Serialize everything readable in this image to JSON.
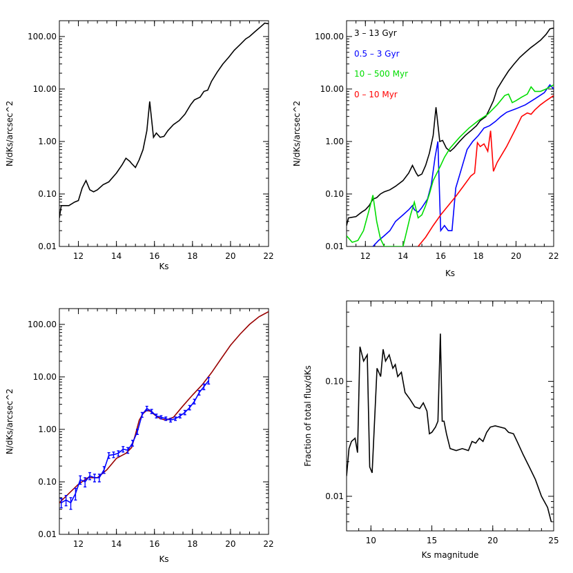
{
  "chart_data": [
    {
      "type": "line",
      "xlabel": "Ks",
      "ylabel": "N/dKs/arcsec^2",
      "xlim": [
        11,
        22
      ],
      "ylim": [
        0.01,
        200
      ],
      "yscale": "log",
      "xticks": [
        12,
        14,
        16,
        18,
        20,
        22
      ],
      "yticks": [
        0.01,
        0.1,
        1,
        10,
        100
      ],
      "yticklabels": [
        "0.01",
        "0.10",
        "1.00",
        "10.00",
        "100.00"
      ],
      "series": [
        {
          "color": "#000000",
          "x": [
            11.0,
            11.1,
            11.5,
            11.8,
            12.0,
            12.2,
            12.4,
            12.6,
            12.8,
            13.0,
            13.3,
            13.6,
            14.0,
            14.3,
            14.5,
            14.7,
            14.8,
            15.0,
            15.2,
            15.4,
            15.6,
            15.75,
            15.95,
            16.1,
            16.3,
            16.5,
            16.7,
            17.0,
            17.3,
            17.6,
            17.9,
            18.1,
            18.4,
            18.6,
            18.8,
            19.0,
            19.3,
            19.6,
            19.9,
            20.2,
            20.5,
            20.8,
            21.0,
            21.3,
            21.6,
            21.8,
            22.0
          ],
          "y": [
            0.035,
            0.06,
            0.06,
            0.07,
            0.075,
            0.13,
            0.18,
            0.12,
            0.11,
            0.12,
            0.15,
            0.17,
            0.25,
            0.36,
            0.48,
            0.42,
            0.38,
            0.32,
            0.45,
            0.7,
            1.6,
            5.8,
            1.2,
            1.45,
            1.2,
            1.25,
            1.6,
            2.1,
            2.5,
            3.3,
            5.0,
            6.2,
            7.0,
            9.0,
            9.5,
            14,
            21,
            30,
            40,
            55,
            70,
            90,
            100,
            125,
            155,
            180,
            175
          ]
        }
      ]
    },
    {
      "type": "line",
      "xlabel": "Ks",
      "ylabel": "N/dKs/arcsec^2",
      "xlim": [
        11,
        22
      ],
      "ylim": [
        0.01,
        200
      ],
      "yscale": "log",
      "xticks": [
        12,
        14,
        16,
        18,
        20,
        22
      ],
      "yticks": [
        0.01,
        0.1,
        1,
        10,
        100
      ],
      "yticklabels": [
        "0.01",
        "0.10",
        "1.00",
        "10.00",
        "100.00"
      ],
      "legend_position": "top-left",
      "series": [
        {
          "name": "3 – 13 Gyr",
          "color": "#000000",
          "x": [
            11.0,
            11.1,
            11.5,
            11.8,
            12.0,
            12.2,
            12.4,
            12.6,
            12.8,
            13.0,
            13.3,
            13.6,
            14.0,
            14.3,
            14.5,
            14.7,
            14.8,
            15.0,
            15.2,
            15.4,
            15.6,
            15.75,
            15.95,
            16.1,
            16.3,
            16.5,
            16.7,
            17.0,
            17.3,
            17.6,
            17.9,
            18.1,
            18.4,
            18.6,
            18.8,
            19.0,
            19.3,
            19.6,
            19.9,
            20.2,
            20.5,
            20.8,
            21.0,
            21.3,
            21.6,
            21.8,
            22.0
          ],
          "y": [
            0.025,
            0.035,
            0.037,
            0.045,
            0.05,
            0.06,
            0.08,
            0.085,
            0.1,
            0.11,
            0.12,
            0.14,
            0.18,
            0.25,
            0.35,
            0.25,
            0.22,
            0.24,
            0.35,
            0.6,
            1.3,
            4.5,
            1.0,
            1.05,
            0.75,
            0.65,
            0.75,
            1.0,
            1.3,
            1.6,
            2.0,
            2.5,
            3.0,
            4.2,
            6.0,
            10,
            15,
            22,
            30,
            40,
            50,
            62,
            70,
            85,
            110,
            140,
            145
          ]
        },
        {
          "name": "0.5 – 3 Gyr",
          "color": "#0000ff",
          "x": [
            12.4,
            12.7,
            13.0,
            13.3,
            13.6,
            14.0,
            14.3,
            14.5,
            14.6,
            14.8,
            15.0,
            15.3,
            15.5,
            15.7,
            15.85,
            16.0,
            16.2,
            16.4,
            16.6,
            16.8,
            17.1,
            17.4,
            17.7,
            18.0,
            18.3,
            18.6,
            18.9,
            19.2,
            19.5,
            20.0,
            20.5,
            21.0,
            21.5,
            21.8,
            22.0
          ],
          "y": [
            0.01,
            0.013,
            0.016,
            0.02,
            0.03,
            0.04,
            0.05,
            0.06,
            0.05,
            0.045,
            0.055,
            0.08,
            0.15,
            0.5,
            1.0,
            0.02,
            0.025,
            0.02,
            0.02,
            0.13,
            0.3,
            0.7,
            1.0,
            1.3,
            1.8,
            2.0,
            2.4,
            3.0,
            3.6,
            4.2,
            5.0,
            6.5,
            8.5,
            12,
            10
          ]
        },
        {
          "name": "10 – 500 Myr",
          "color": "#00dd00",
          "x": [
            11.0,
            11.3,
            11.6,
            11.9,
            12.2,
            12.4,
            12.6,
            12.8,
            13.0,
            13.5,
            14.0,
            14.4,
            14.6,
            14.8,
            15.0,
            15.2,
            15.4,
            15.6,
            15.8,
            16.0,
            16.2,
            16.5,
            17.0,
            17.5,
            18.0,
            18.5,
            19.0,
            19.4,
            19.6,
            19.8,
            20.0,
            20.3,
            20.6,
            20.8,
            21.0,
            21.3,
            21.6,
            21.8,
            22.0
          ],
          "y": [
            0.016,
            0.012,
            0.013,
            0.02,
            0.05,
            0.095,
            0.03,
            0.014,
            0.01,
            0.01,
            0.01,
            0.04,
            0.07,
            0.035,
            0.04,
            0.06,
            0.1,
            0.18,
            0.25,
            0.35,
            0.5,
            0.75,
            1.2,
            1.8,
            2.5,
            3.3,
            5.0,
            7.5,
            8.0,
            5.5,
            6.0,
            7.0,
            8.0,
            11,
            9.0,
            9.0,
            10,
            11,
            12
          ]
        },
        {
          "name": "0 – 10 Myr",
          "color": "#ff0000",
          "x": [
            14.8,
            15.2,
            15.6,
            16.0,
            16.4,
            16.8,
            17.2,
            17.6,
            17.8,
            17.95,
            18.1,
            18.3,
            18.5,
            18.65,
            18.8,
            19.0,
            19.5,
            20.0,
            20.3,
            20.6,
            20.8,
            21.0,
            21.3,
            21.6,
            22.0
          ],
          "y": [
            0.01,
            0.015,
            0.025,
            0.04,
            0.06,
            0.09,
            0.14,
            0.22,
            0.25,
            0.95,
            0.8,
            0.9,
            0.65,
            1.6,
            0.27,
            0.4,
            0.8,
            1.8,
            3.0,
            3.5,
            3.3,
            4.0,
            5.0,
            6.0,
            7.5
          ]
        }
      ]
    },
    {
      "type": "line",
      "xlabel": "Ks",
      "ylabel": "N/dKs/arcsec^2",
      "xlim": [
        11,
        22
      ],
      "ylim": [
        0.01,
        200
      ],
      "yscale": "log",
      "xticks": [
        12,
        14,
        16,
        18,
        20,
        22
      ],
      "yticks": [
        0.01,
        0.1,
        1,
        10,
        100
      ],
      "yticklabels": [
        "0.01",
        "0.10",
        "1.00",
        "10.00",
        "100.00"
      ],
      "series": [
        {
          "color": "#990000",
          "x": [
            11.0,
            11.5,
            12.0,
            12.5,
            13.0,
            13.5,
            14.0,
            14.5,
            14.8,
            15.0,
            15.2,
            15.4,
            15.6,
            15.8,
            16.0,
            16.3,
            16.6,
            17.0,
            17.5,
            18.0,
            18.5,
            19.0,
            19.5,
            20.0,
            20.5,
            21.0,
            21.5,
            22.0
          ],
          "y": [
            0.04,
            0.06,
            0.09,
            0.12,
            0.12,
            0.17,
            0.28,
            0.35,
            0.45,
            0.8,
            1.5,
            2.0,
            2.3,
            2.2,
            1.9,
            1.6,
            1.5,
            1.7,
            2.8,
            4.5,
            7.0,
            12,
            22,
            40,
            65,
            100,
            140,
            175
          ]
        },
        {
          "color": "#0000ff",
          "x": [
            11.1,
            11.35,
            11.6,
            11.85,
            12.1,
            12.35,
            12.6,
            12.85,
            13.1,
            13.35,
            13.6,
            13.85,
            14.1,
            14.35,
            14.6,
            14.85,
            15.1,
            15.35,
            15.6,
            15.85,
            16.1,
            16.35,
            16.6,
            16.85,
            17.1,
            17.35,
            17.6,
            17.85,
            18.1,
            18.35,
            18.6,
            18.85
          ],
          "y": [
            0.04,
            0.045,
            0.04,
            0.06,
            0.11,
            0.1,
            0.13,
            0.12,
            0.12,
            0.17,
            0.32,
            0.33,
            0.35,
            0.42,
            0.4,
            0.55,
            0.9,
            1.9,
            2.5,
            2.2,
            1.8,
            1.7,
            1.6,
            1.5,
            1.6,
            1.8,
            2.1,
            2.6,
            3.4,
            5.0,
            6.5,
            8.5
          ],
          "err": [
            0.008,
            0.01,
            0.01,
            0.015,
            0.02,
            0.02,
            0.02,
            0.02,
            0.02,
            0.025,
            0.04,
            0.04,
            0.04,
            0.05,
            0.05,
            0.07,
            0.1,
            0.2,
            0.25,
            0.2,
            0.15,
            0.12,
            0.12,
            0.12,
            0.12,
            0.15,
            0.2,
            0.25,
            0.35,
            0.5,
            0.8,
            1.2
          ]
        }
      ]
    },
    {
      "type": "line",
      "xlabel": "Ks magnitude",
      "ylabel": "Fraction of total flux/dKs",
      "xlim": [
        8,
        25
      ],
      "ylim": [
        0.005,
        0.5
      ],
      "yscale": "log",
      "xticks": [
        10,
        15,
        20,
        25
      ],
      "yticks": [
        0.01,
        0.1
      ],
      "yticklabels": [
        "0.01",
        "0.10"
      ],
      "series": [
        {
          "color": "#000000",
          "x": [
            8.0,
            8.2,
            8.4,
            8.7,
            8.9,
            9.1,
            9.4,
            9.7,
            9.9,
            10.1,
            10.5,
            10.8,
            11.0,
            11.2,
            11.5,
            11.8,
            12.0,
            12.2,
            12.5,
            12.8,
            13.2,
            13.6,
            14.0,
            14.3,
            14.6,
            14.8,
            15.0,
            15.3,
            15.5,
            15.7,
            15.85,
            16.0,
            16.2,
            16.5,
            17.0,
            17.5,
            18.0,
            18.3,
            18.6,
            18.9,
            19.2,
            19.5,
            19.8,
            20.2,
            20.6,
            21.0,
            21.3,
            21.7,
            22.0,
            22.5,
            23.0,
            23.5,
            24.0,
            24.5,
            24.8
          ],
          "y": [
            0.015,
            0.026,
            0.03,
            0.032,
            0.024,
            0.2,
            0.15,
            0.17,
            0.018,
            0.016,
            0.13,
            0.11,
            0.19,
            0.15,
            0.17,
            0.13,
            0.14,
            0.11,
            0.12,
            0.08,
            0.07,
            0.06,
            0.058,
            0.065,
            0.055,
            0.035,
            0.036,
            0.04,
            0.045,
            0.26,
            0.045,
            0.045,
            0.035,
            0.026,
            0.025,
            0.026,
            0.025,
            0.03,
            0.029,
            0.032,
            0.03,
            0.036,
            0.04,
            0.041,
            0.04,
            0.039,
            0.036,
            0.035,
            0.03,
            0.023,
            0.018,
            0.014,
            0.01,
            0.008,
            0.006
          ]
        }
      ]
    }
  ]
}
